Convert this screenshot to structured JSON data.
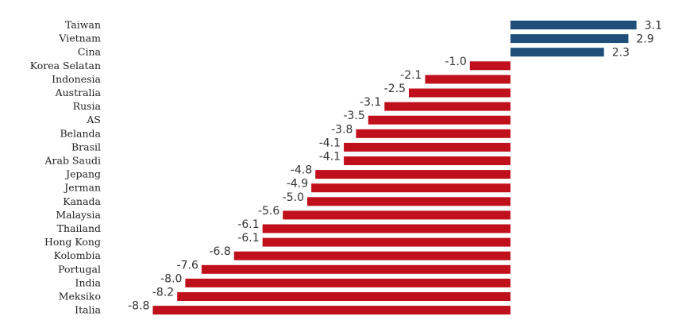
{
  "chart_data": {
    "type": "bar",
    "orientation": "horizontal",
    "title": "",
    "xlabel": "",
    "ylabel": "",
    "categories": [
      "Taiwan",
      "Vietnam",
      "Cina",
      "Korea Selatan",
      "Indonesia",
      "Australia",
      "Rusia",
      "AS",
      "Belanda",
      "Brasil",
      "Arab Saudi",
      "Jepang",
      "Jerman",
      "Kanada",
      "Malaysia",
      "Thailand",
      "Hong Kong",
      "Kolombia",
      "Portugal",
      "India",
      "Meksiko",
      "Italia"
    ],
    "values": [
      3.1,
      2.9,
      2.3,
      -1.0,
      -2.1,
      -2.5,
      -3.1,
      -3.5,
      -3.8,
      -4.1,
      -4.1,
      -4.8,
      -4.9,
      -5.0,
      -5.6,
      -6.1,
      -6.1,
      -6.8,
      -7.6,
      -8.0,
      -8.2,
      -8.8
    ],
    "value_labels": [
      "3.1",
      "2.9",
      "2.3",
      "-1.0",
      "-2.1",
      "-2.5",
      "-3.1",
      "-3.5",
      "-3.8",
      "-4.1",
      "-4.1",
      "-4.8",
      "-4.9",
      "-5.0",
      "-5.6",
      "-6.1",
      "-6.1",
      "-6.8",
      "-7.6",
      "-8.0",
      "-8.2",
      "-8.8"
    ],
    "xlim": [
      -8.8,
      3.1
    ],
    "grid": false,
    "legend": "none",
    "colors": {
      "positive": "#1f4e79",
      "negative": "#c0101c"
    }
  }
}
